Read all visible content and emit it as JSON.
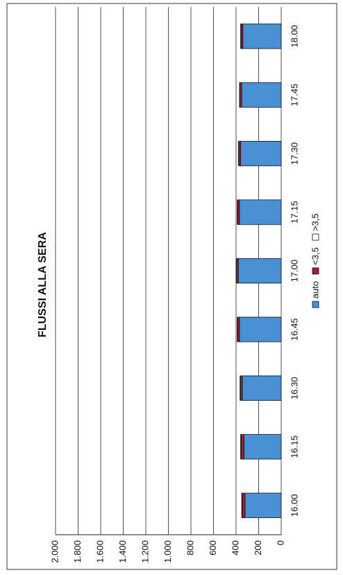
{
  "chart_data": {
    "type": "stacked_bar",
    "title": "FLUSSI ALLA SERA",
    "categories": [
      "16.00",
      "16.15",
      "16.30",
      "16.45",
      "17.00",
      "17.15",
      "17.30",
      "17.45",
      "18.00"
    ],
    "series": [
      {
        "name": "auto",
        "color": "#4a90d4",
        "values": [
          320,
          330,
          345,
          370,
          380,
          370,
          360,
          350,
          340
        ]
      },
      {
        "name": "<3,5",
        "color": "#9e1f3a",
        "values": [
          25,
          25,
          15,
          15,
          15,
          15,
          15,
          15,
          15
        ]
      },
      {
        "name": ">3,5",
        "color": "#ffffff",
        "values": [
          5,
          5,
          5,
          5,
          5,
          5,
          5,
          5,
          5
        ]
      }
    ],
    "ylim": [
      0,
      2000
    ],
    "yticks": [
      0,
      200,
      400,
      600,
      800,
      {
        "value": 1000,
        "label": "1.000"
      },
      {
        "value": 1200,
        "label": "1.200"
      },
      {
        "value": 1400,
        "label": "1.400"
      },
      {
        "value": 1600,
        "label": "1.600"
      },
      {
        "value": 1800,
        "label": "1.800"
      },
      {
        "value": 2000,
        "label": "2.000"
      }
    ],
    "grid": true
  }
}
